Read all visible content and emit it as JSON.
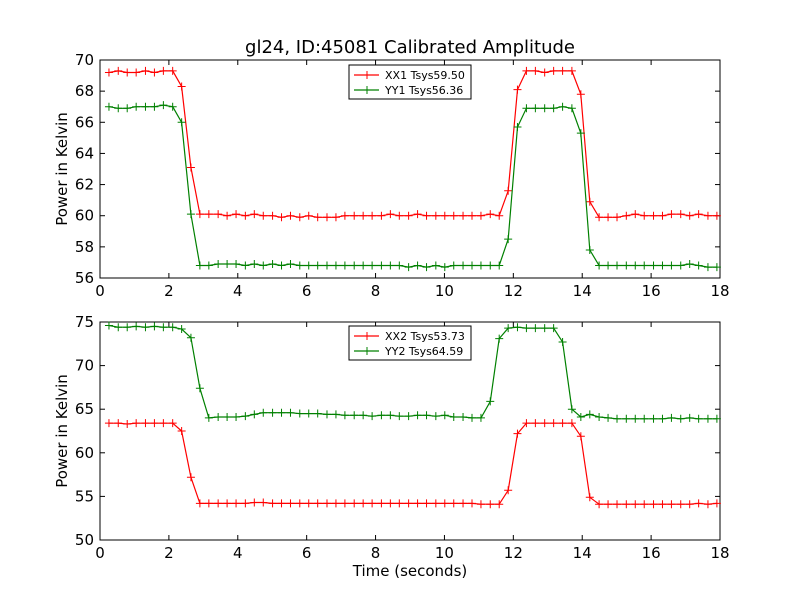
{
  "figure": {
    "title": "gl24, ID:45081 Calibrated Amplitude",
    "xlabel": "Time (seconds)"
  },
  "chart_data": [
    {
      "type": "line",
      "title": "gl24, ID:45081 Calibrated Amplitude",
      "xlabel": "",
      "ylabel": "Power in Kelvin",
      "xlim": [
        0,
        18
      ],
      "ylim": [
        56,
        70
      ],
      "xticks": [
        0,
        2,
        4,
        6,
        8,
        10,
        12,
        14,
        16,
        18
      ],
      "yticks": [
        56,
        58,
        60,
        62,
        64,
        66,
        68,
        70
      ],
      "grid": false,
      "legend_position": "top-center",
      "x": [
        0.26,
        0.53,
        0.79,
        1.05,
        1.32,
        1.58,
        1.84,
        2.11,
        2.37,
        2.64,
        2.9,
        3.16,
        3.43,
        3.69,
        3.95,
        4.22,
        4.48,
        4.74,
        5.01,
        5.27,
        5.53,
        5.8,
        6.06,
        6.32,
        6.59,
        6.85,
        7.11,
        7.38,
        7.64,
        7.9,
        8.17,
        8.43,
        8.69,
        8.96,
        9.22,
        9.48,
        9.75,
        10.01,
        10.27,
        10.54,
        10.8,
        11.06,
        11.33,
        11.59,
        11.85,
        12.12,
        12.38,
        12.64,
        12.91,
        13.17,
        13.43,
        13.7,
        13.96,
        14.22,
        14.49,
        14.75,
        15.01,
        15.28,
        15.54,
        15.8,
        16.07,
        16.33,
        16.59,
        16.86,
        17.12,
        17.38,
        17.65,
        17.91
      ],
      "series": [
        {
          "name": "XX1 Tsys59.50",
          "color": "#ff0000",
          "values": [
            69.2,
            69.3,
            69.2,
            69.2,
            69.3,
            69.2,
            69.3,
            69.3,
            68.3,
            63.1,
            60.1,
            60.1,
            60.1,
            60.0,
            60.1,
            60.0,
            60.1,
            60.0,
            60.0,
            59.9,
            60.0,
            59.9,
            60.0,
            59.9,
            59.9,
            59.9,
            60.0,
            60.0,
            60.0,
            60.0,
            60.0,
            60.1,
            60.0,
            60.0,
            60.1,
            60.0,
            60.0,
            60.0,
            60.0,
            60.0,
            60.0,
            60.0,
            60.1,
            60.0,
            61.6,
            68.1,
            69.3,
            69.3,
            69.2,
            69.3,
            69.3,
            69.3,
            67.8,
            60.9,
            59.9,
            59.9,
            59.9,
            60.0,
            60.1,
            60.0,
            60.0,
            60.0,
            60.1,
            60.1,
            60.0,
            60.1,
            60.0,
            60.0
          ]
        },
        {
          "name": "YY1 Tsys56.36",
          "color": "#008000",
          "values": [
            67.0,
            66.9,
            66.9,
            67.0,
            67.0,
            67.0,
            67.1,
            67.0,
            66.0,
            60.1,
            56.8,
            56.8,
            56.9,
            56.9,
            56.9,
            56.8,
            56.9,
            56.8,
            56.9,
            56.8,
            56.9,
            56.8,
            56.8,
            56.8,
            56.8,
            56.8,
            56.8,
            56.8,
            56.8,
            56.8,
            56.8,
            56.8,
            56.8,
            56.7,
            56.8,
            56.7,
            56.8,
            56.7,
            56.8,
            56.8,
            56.8,
            56.8,
            56.8,
            56.8,
            58.5,
            65.7,
            66.9,
            66.9,
            66.9,
            66.9,
            67.0,
            66.9,
            65.3,
            57.8,
            56.8,
            56.8,
            56.8,
            56.8,
            56.8,
            56.8,
            56.8,
            56.8,
            56.8,
            56.8,
            56.9,
            56.8,
            56.7,
            56.7
          ]
        }
      ]
    },
    {
      "type": "line",
      "title": "",
      "xlabel": "Time (seconds)",
      "ylabel": "Power in Kelvin",
      "xlim": [
        0,
        18
      ],
      "ylim": [
        50,
        75
      ],
      "xticks": [
        0,
        2,
        4,
        6,
        8,
        10,
        12,
        14,
        16,
        18
      ],
      "yticks": [
        50,
        55,
        60,
        65,
        70,
        75
      ],
      "grid": false,
      "legend_position": "top-center",
      "x": [
        0.26,
        0.53,
        0.79,
        1.05,
        1.32,
        1.58,
        1.84,
        2.11,
        2.37,
        2.64,
        2.9,
        3.16,
        3.43,
        3.69,
        3.95,
        4.22,
        4.48,
        4.74,
        5.01,
        5.27,
        5.53,
        5.8,
        6.06,
        6.32,
        6.59,
        6.85,
        7.11,
        7.38,
        7.64,
        7.9,
        8.17,
        8.43,
        8.69,
        8.96,
        9.22,
        9.48,
        9.75,
        10.01,
        10.27,
        10.54,
        10.8,
        11.06,
        11.33,
        11.59,
        11.85,
        12.12,
        12.38,
        12.64,
        12.91,
        13.17,
        13.43,
        13.7,
        13.96,
        14.22,
        14.49,
        14.75,
        15.01,
        15.28,
        15.54,
        15.8,
        16.07,
        16.33,
        16.59,
        16.86,
        17.12,
        17.38,
        17.65,
        17.91
      ],
      "series": [
        {
          "name": "XX2 Tsys53.73",
          "color": "#ff0000",
          "values": [
            63.4,
            63.4,
            63.3,
            63.4,
            63.4,
            63.4,
            63.4,
            63.4,
            62.5,
            57.2,
            54.2,
            54.2,
            54.2,
            54.2,
            54.2,
            54.2,
            54.3,
            54.3,
            54.2,
            54.2,
            54.2,
            54.2,
            54.2,
            54.2,
            54.2,
            54.2,
            54.2,
            54.2,
            54.2,
            54.2,
            54.2,
            54.2,
            54.2,
            54.2,
            54.2,
            54.2,
            54.2,
            54.2,
            54.2,
            54.2,
            54.2,
            54.1,
            54.1,
            54.1,
            55.7,
            62.2,
            63.4,
            63.4,
            63.4,
            63.4,
            63.4,
            63.4,
            61.9,
            54.9,
            54.1,
            54.1,
            54.1,
            54.1,
            54.1,
            54.1,
            54.1,
            54.1,
            54.1,
            54.1,
            54.1,
            54.2,
            54.1,
            54.2
          ]
        },
        {
          "name": "YY2 Tsys64.59",
          "color": "#008000",
          "values": [
            74.6,
            74.4,
            74.4,
            74.5,
            74.4,
            74.5,
            74.4,
            74.4,
            74.2,
            73.2,
            67.4,
            64.0,
            64.1,
            64.1,
            64.1,
            64.2,
            64.4,
            64.6,
            64.6,
            64.6,
            64.6,
            64.5,
            64.5,
            64.5,
            64.4,
            64.4,
            64.3,
            64.3,
            64.3,
            64.2,
            64.3,
            64.3,
            64.2,
            64.2,
            64.3,
            64.3,
            64.2,
            64.3,
            64.1,
            64.1,
            64.0,
            64.0,
            65.9,
            73.1,
            74.3,
            74.4,
            74.3,
            74.3,
            74.3,
            74.3,
            72.7,
            65.0,
            64.1,
            64.4,
            64.1,
            64.0,
            63.9,
            63.9,
            63.9,
            63.9,
            63.9,
            63.9,
            64.0,
            63.9,
            64.0,
            63.9,
            63.9,
            63.9
          ]
        }
      ]
    }
  ]
}
